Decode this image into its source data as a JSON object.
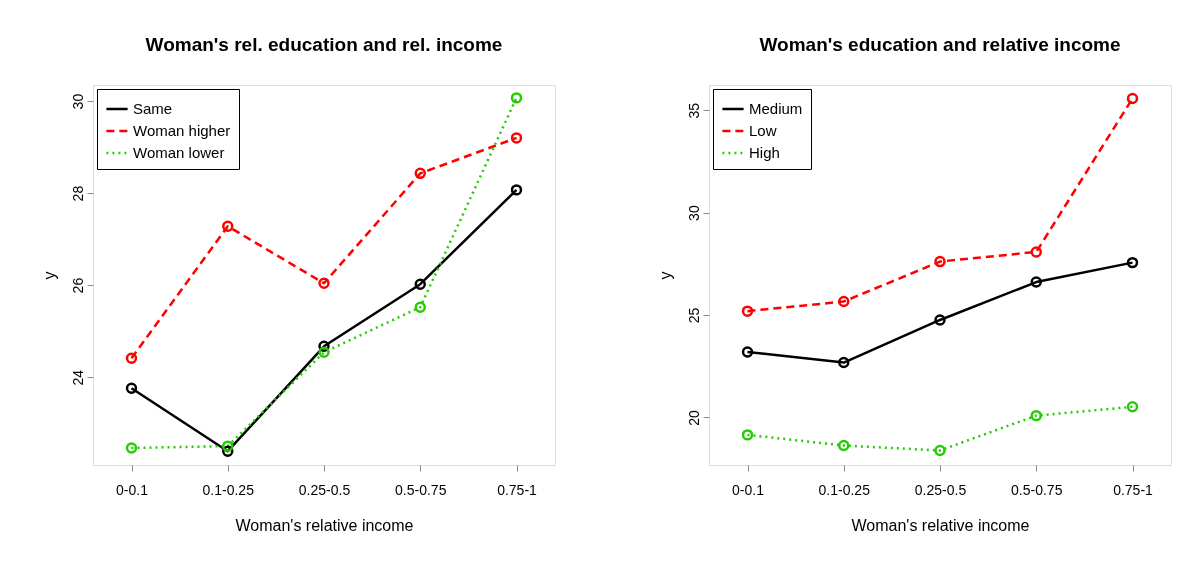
{
  "chart_data": [
    {
      "type": "line",
      "title": "Woman's rel. education and rel. income",
      "xlabel": "Woman's relative income",
      "ylabel": "y",
      "categories": [
        "0-0.1",
        "0.1-0.25",
        "0.25-0.5",
        "0.5-0.75",
        "0.75-1"
      ],
      "ylim": [
        22.09,
        30.35
      ],
      "yticks": [
        24,
        26,
        28,
        30
      ],
      "grid": false,
      "legend": "top left",
      "marker": "circle",
      "series": [
        {
          "name": "Same",
          "color": "#000000",
          "line_style": "solid",
          "values": [
            23.76,
            22.39,
            24.67,
            26.02,
            28.07
          ]
        },
        {
          "name": "Woman higher",
          "color": "#ff0000",
          "line_style": "dashed",
          "values": [
            24.41,
            27.28,
            26.04,
            28.43,
            29.2
          ]
        },
        {
          "name": "Woman lower",
          "color": "#22cc00",
          "line_style": "dotted",
          "values": [
            22.46,
            22.5,
            24.54,
            25.52,
            30.07
          ]
        }
      ]
    },
    {
      "type": "line",
      "title": "Woman's education and relative income",
      "xlabel": "Woman's relative income",
      "ylabel": "y",
      "categories": [
        "0-0.1",
        "0.1-0.25",
        "0.25-0.5",
        "0.5-0.75",
        "0.75-1"
      ],
      "ylim": [
        17.68,
        36.23
      ],
      "yticks": [
        20,
        25,
        30,
        35
      ],
      "grid": false,
      "legend": "top left",
      "marker": "circle",
      "series": [
        {
          "name": "Medium",
          "color": "#000000",
          "line_style": "solid",
          "values": [
            23.2,
            22.68,
            24.76,
            26.61,
            27.56
          ]
        },
        {
          "name": "Low",
          "color": "#ff0000",
          "line_style": "dashed",
          "values": [
            25.19,
            25.66,
            27.61,
            28.08,
            35.57
          ]
        },
        {
          "name": "High",
          "color": "#22cc00",
          "line_style": "dotted",
          "values": [
            19.15,
            18.63,
            18.39,
            20.09,
            20.52
          ]
        }
      ]
    }
  ]
}
